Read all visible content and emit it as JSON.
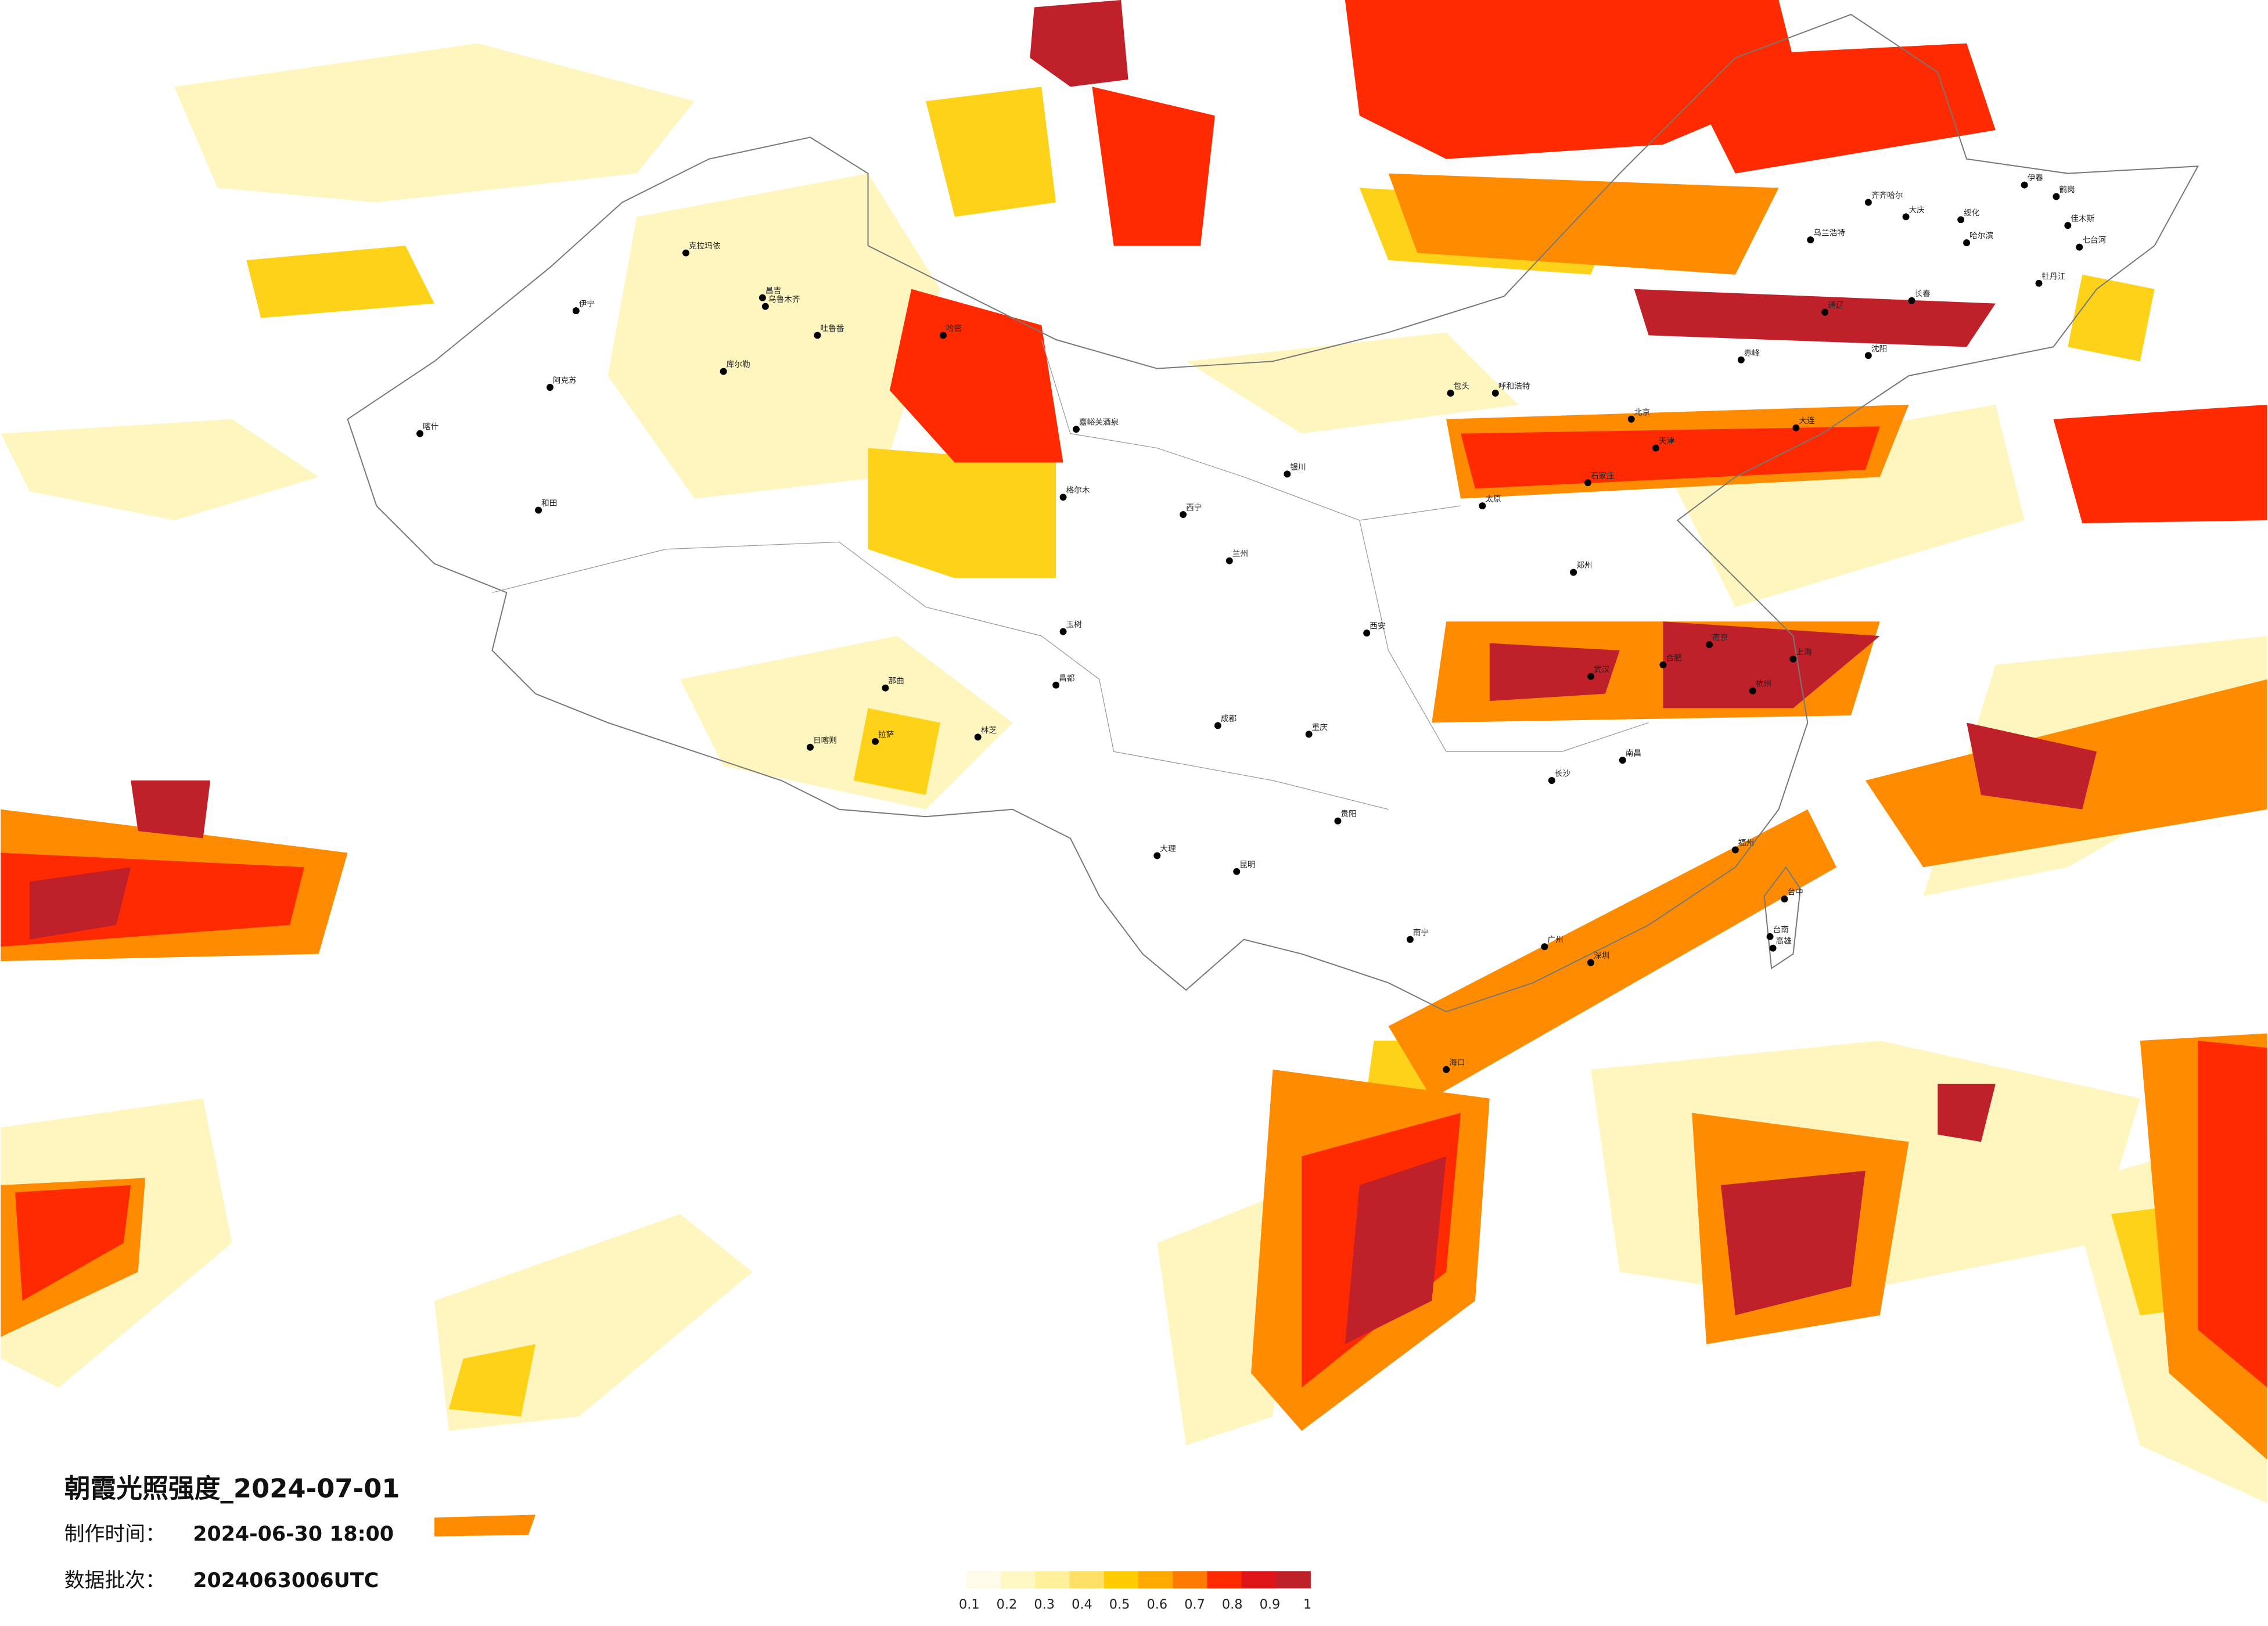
{
  "title": "朝霞光照强度_2024-07-01",
  "info": [
    {
      "label": "制作时间：",
      "value": "2024-06-30 18:00"
    },
    {
      "label": "数据批次：",
      "value": "2024063006UTC"
    }
  ],
  "legend": {
    "colors": [
      "#fffbe8",
      "#fff7c4",
      "#fff09a",
      "#ffe066",
      "#ffcc00",
      "#ffa800",
      "#ff7a00",
      "#ff2a00",
      "#e0151b",
      "#c0202a"
    ],
    "labels": [
      "0.1",
      "0.2",
      "0.3",
      "0.4",
      "0.5",
      "0.6",
      "0.7",
      "0.8",
      "0.9",
      "1"
    ]
  },
  "cities": [
    {
      "name": "克拉玛依"
    },
    {
      "name": "伊宁"
    },
    {
      "name": "昌吉"
    },
    {
      "name": "乌鲁木齐"
    },
    {
      "name": "吐鲁番"
    },
    {
      "name": "库尔勒"
    },
    {
      "name": "阿克苏"
    },
    {
      "name": "喀什"
    },
    {
      "name": "和田"
    },
    {
      "name": "哈密"
    },
    {
      "name": "嘉峪关酒泉"
    },
    {
      "name": "格尔木"
    },
    {
      "name": "日喀则"
    },
    {
      "name": "拉萨"
    },
    {
      "name": "林芝"
    },
    {
      "name": "那曲"
    },
    {
      "name": "玉树"
    },
    {
      "name": "昌都"
    },
    {
      "name": "西宁"
    },
    {
      "name": "兰州"
    },
    {
      "name": "银川"
    },
    {
      "name": "成都"
    },
    {
      "name": "重庆"
    },
    {
      "name": "贵阳"
    },
    {
      "name": "昆明"
    },
    {
      "name": "大理"
    },
    {
      "name": "西安"
    },
    {
      "name": "北京"
    },
    {
      "name": "天津"
    },
    {
      "name": "石家庄"
    },
    {
      "name": "太原"
    },
    {
      "name": "郑州"
    },
    {
      "name": "武汉"
    },
    {
      "name": "长沙"
    },
    {
      "name": "南昌"
    },
    {
      "name": "杭州"
    },
    {
      "name": "上海"
    },
    {
      "name": "南京"
    },
    {
      "name": "合肥"
    },
    {
      "name": "福州"
    },
    {
      "name": "广州"
    },
    {
      "name": "深圳"
    },
    {
      "name": "南宁"
    },
    {
      "name": "海口"
    },
    {
      "name": "台中"
    },
    {
      "name": "台南"
    },
    {
      "name": "高雄"
    },
    {
      "name": "哈尔滨"
    },
    {
      "name": "长春"
    },
    {
      "name": "沈阳"
    },
    {
      "name": "大连"
    },
    {
      "name": "呼和浩特"
    },
    {
      "name": "包头"
    },
    {
      "name": "齐齐哈尔"
    },
    {
      "name": "大庆"
    },
    {
      "name": "伊春"
    },
    {
      "name": "佳木斯"
    },
    {
      "name": "鹤岗"
    },
    {
      "name": "七台河"
    },
    {
      "name": "牡丹江"
    },
    {
      "name": "绥化"
    },
    {
      "name": "乌兰浩特"
    },
    {
      "name": "通辽"
    },
    {
      "name": "赤峰"
    }
  ]
}
